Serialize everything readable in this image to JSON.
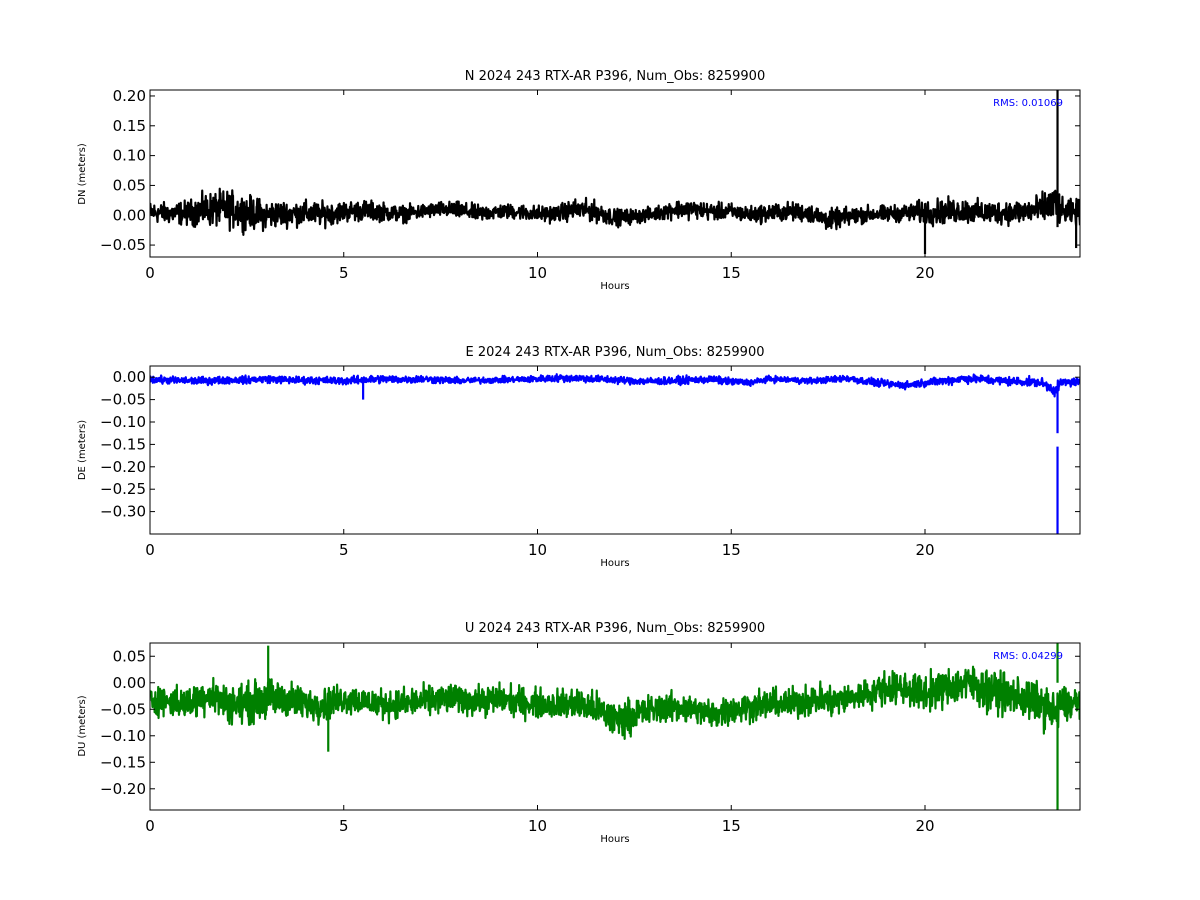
{
  "chart_data": [
    {
      "type": "line",
      "title": "N 2024 243 RTX-AR  P396, Num_Obs: 8259900",
      "xlabel": "Hours",
      "ylabel": "DN (meters)",
      "xlim": [
        0,
        24
      ],
      "ylim": [
        -0.07,
        0.21
      ],
      "x_ticks": [
        0,
        5,
        10,
        15,
        20
      ],
      "x_tick_labels": [
        "0",
        "5",
        "10",
        "15",
        "20"
      ],
      "y_ticks": [
        -0.05,
        0.0,
        0.05,
        0.1,
        0.15,
        0.2
      ],
      "y_tick_labels": [
        "−0.05",
        "0.00",
        "0.05",
        "0.10",
        "0.15",
        "0.20"
      ],
      "grid": false,
      "color": "#000000",
      "rms_label": "RMS:  0.01069",
      "rms_color": "#0000ff",
      "series": [
        {
          "x": [
            0,
            0.5,
            1,
            1.5,
            2,
            2.5,
            3,
            3.5,
            4,
            4.5,
            5,
            5.5,
            6,
            6.5,
            7,
            7.5,
            8,
            8.5,
            9,
            9.5,
            10,
            10.5,
            11,
            11.5,
            12,
            12.5,
            13,
            13.5,
            14,
            14.5,
            15,
            15.5,
            16,
            16.5,
            17,
            17.5,
            18,
            18.5,
            19,
            19.5,
            20,
            20.5,
            21,
            21.5,
            22,
            22.5,
            23,
            23.4,
            23.5,
            24
          ],
          "y": [
            0.005,
            0.003,
            0.004,
            0.01,
            0.01,
            0.005,
            0.0,
            0.003,
            0.003,
            0.002,
            0.006,
            0.008,
            0.006,
            0.002,
            0.006,
            0.01,
            0.008,
            0.003,
            0.006,
            0.006,
            0.002,
            0.003,
            0.01,
            0.006,
            -0.004,
            -0.002,
            0.002,
            0.01,
            0.01,
            0.006,
            0.006,
            0.001,
            0.004,
            0.006,
            0.004,
            -0.008,
            -0.003,
            0.002,
            0.002,
            0.004,
            0.005,
            0.006,
            0.008,
            0.004,
            0.005,
            0.006,
            0.01,
            0.02,
            0.005,
            0.005
          ],
          "spread": [
            0.025,
            0.025,
            0.03,
            0.04,
            0.045,
            0.04,
            0.035,
            0.03,
            0.03,
            0.028,
            0.025,
            0.025,
            0.022,
            0.02,
            0.018,
            0.018,
            0.02,
            0.02,
            0.018,
            0.018,
            0.02,
            0.02,
            0.025,
            0.025,
            0.02,
            0.018,
            0.016,
            0.022,
            0.022,
            0.02,
            0.02,
            0.02,
            0.022,
            0.022,
            0.022,
            0.025,
            0.022,
            0.02,
            0.02,
            0.02,
            0.03,
            0.03,
            0.03,
            0.028,
            0.028,
            0.03,
            0.035,
            0.05,
            0.03,
            0.03
          ]
        }
      ],
      "spikes": [
        {
          "x": 23.42,
          "y_min": -0.02,
          "y_max": 0.21
        },
        {
          "x": 20.0,
          "y_min": -0.065,
          "y_max": 0.02
        },
        {
          "x": 23.9,
          "y_min": -0.055,
          "y_max": 0.02
        }
      ]
    },
    {
      "type": "line",
      "title": "E 2024 243 RTX-AR  P396, Num_Obs: 8259900",
      "xlabel": "Hours",
      "ylabel": "DE (meters)",
      "xlim": [
        0,
        24
      ],
      "ylim": [
        -0.35,
        0.025
      ],
      "x_ticks": [
        0,
        5,
        10,
        15,
        20
      ],
      "x_tick_labels": [
        "0",
        "5",
        "10",
        "15",
        "20"
      ],
      "y_ticks": [
        0.0,
        -0.05,
        -0.1,
        -0.15,
        -0.2,
        -0.25,
        -0.3
      ],
      "y_tick_labels": [
        "0.00",
        "−0.05",
        "−0.10",
        "−0.15",
        "−0.20",
        "−0.25",
        "−0.30"
      ],
      "grid": false,
      "color": "#0000ff",
      "rms_label": "",
      "rms_color": "#0000ff",
      "series": [
        {
          "x": [
            0,
            0.5,
            1,
            1.5,
            2,
            2.5,
            3,
            3.5,
            4,
            4.5,
            5,
            5.5,
            6,
            6.5,
            7,
            7.5,
            8,
            8.5,
            9,
            9.5,
            10,
            10.5,
            11,
            11.5,
            12,
            12.5,
            13,
            13.5,
            14,
            14.5,
            15,
            15.5,
            16,
            16.5,
            17,
            17.5,
            18,
            18.5,
            19,
            19.5,
            20,
            20.5,
            21,
            21.5,
            22,
            22.5,
            23,
            23.4,
            23.5,
            24
          ],
          "y": [
            -0.005,
            -0.007,
            -0.008,
            -0.008,
            -0.006,
            -0.006,
            -0.004,
            -0.006,
            -0.007,
            -0.007,
            -0.008,
            -0.006,
            -0.004,
            -0.005,
            -0.004,
            -0.006,
            -0.008,
            -0.007,
            -0.006,
            -0.005,
            -0.004,
            -0.002,
            -0.002,
            -0.004,
            -0.006,
            -0.008,
            -0.009,
            -0.008,
            -0.006,
            -0.005,
            -0.01,
            -0.012,
            -0.004,
            -0.006,
            -0.008,
            -0.006,
            -0.002,
            -0.01,
            -0.015,
            -0.018,
            -0.012,
            -0.008,
            -0.003,
            -0.005,
            -0.008,
            -0.01,
            -0.012,
            -0.03,
            -0.012,
            -0.01
          ],
          "spread": [
            0.012,
            0.012,
            0.012,
            0.012,
            0.012,
            0.012,
            0.012,
            0.012,
            0.012,
            0.012,
            0.012,
            0.013,
            0.013,
            0.012,
            0.012,
            0.012,
            0.01,
            0.01,
            0.01,
            0.01,
            0.011,
            0.012,
            0.012,
            0.012,
            0.012,
            0.012,
            0.012,
            0.012,
            0.012,
            0.012,
            0.012,
            0.01,
            0.01,
            0.01,
            0.01,
            0.01,
            0.012,
            0.012,
            0.012,
            0.012,
            0.012,
            0.014,
            0.014,
            0.014,
            0.014,
            0.014,
            0.014,
            0.02,
            0.014,
            0.014
          ]
        }
      ],
      "spikes": [
        {
          "x": 23.42,
          "y_min": -0.125,
          "y_max": -0.02
        },
        {
          "x": 23.42,
          "y_min": -0.35,
          "y_max": -0.155
        },
        {
          "x": 5.5,
          "y_min": -0.05,
          "y_max": -0.01
        }
      ]
    },
    {
      "type": "line",
      "title": "U 2024 243 RTX-AR  P396, Num_Obs: 8259900",
      "xlabel": "Hours",
      "ylabel": "DU (meters)",
      "xlim": [
        0,
        24
      ],
      "ylim": [
        -0.24,
        0.075
      ],
      "x_ticks": [
        0,
        5,
        10,
        15,
        20
      ],
      "x_tick_labels": [
        "0",
        "5",
        "10",
        "15",
        "20"
      ],
      "y_ticks": [
        0.05,
        0.0,
        -0.05,
        -0.1,
        -0.15,
        -0.2
      ],
      "y_tick_labels": [
        "0.05",
        "0.00",
        "−0.05",
        "−0.10",
        "−0.15",
        "−0.20"
      ],
      "grid": false,
      "color": "#008000",
      "rms_label": "RMS:  0.04299",
      "rms_color": "#0000ff",
      "series": [
        {
          "x": [
            0,
            0.5,
            1,
            1.5,
            2,
            2.5,
            3,
            3.5,
            4,
            4.5,
            5,
            5.5,
            6,
            6.5,
            7,
            7.5,
            8,
            8.5,
            9,
            9.5,
            10,
            10.5,
            11,
            11.5,
            12,
            12.5,
            13,
            13.5,
            14,
            14.5,
            15,
            15.5,
            16,
            16.5,
            17,
            17.5,
            18,
            18.5,
            19,
            19.5,
            20,
            20.5,
            21,
            21.5,
            22,
            22.5,
            23,
            23.4,
            23.5,
            24
          ],
          "y": [
            -0.03,
            -0.035,
            -0.04,
            -0.02,
            -0.04,
            -0.04,
            -0.03,
            -0.03,
            -0.04,
            -0.04,
            -0.03,
            -0.035,
            -0.04,
            -0.04,
            -0.035,
            -0.03,
            -0.03,
            -0.035,
            -0.03,
            -0.035,
            -0.04,
            -0.04,
            -0.04,
            -0.05,
            -0.07,
            -0.06,
            -0.05,
            -0.045,
            -0.05,
            -0.06,
            -0.05,
            -0.045,
            -0.04,
            -0.04,
            -0.03,
            -0.035,
            -0.03,
            -0.02,
            -0.01,
            -0.01,
            -0.02,
            -0.01,
            0.0,
            -0.01,
            -0.02,
            -0.03,
            -0.04,
            -0.06,
            -0.04,
            -0.04
          ],
          "spread": [
            0.04,
            0.04,
            0.045,
            0.05,
            0.05,
            0.055,
            0.055,
            0.05,
            0.045,
            0.045,
            0.04,
            0.04,
            0.04,
            0.04,
            0.04,
            0.04,
            0.04,
            0.04,
            0.04,
            0.04,
            0.04,
            0.04,
            0.045,
            0.045,
            0.05,
            0.045,
            0.04,
            0.04,
            0.04,
            0.04,
            0.04,
            0.04,
            0.04,
            0.04,
            0.045,
            0.045,
            0.04,
            0.04,
            0.045,
            0.045,
            0.05,
            0.05,
            0.055,
            0.055,
            0.055,
            0.055,
            0.055,
            0.06,
            0.05,
            0.05
          ]
        }
      ],
      "spikes": [
        {
          "x": 23.42,
          "y_min": -0.24,
          "y_max": -0.07
        },
        {
          "x": 23.42,
          "y_min": 0.0,
          "y_max": 0.075
        },
        {
          "x": 4.6,
          "y_min": -0.13,
          "y_max": -0.05
        },
        {
          "x": 3.05,
          "y_min": 0.0,
          "y_max": 0.07
        }
      ]
    }
  ]
}
